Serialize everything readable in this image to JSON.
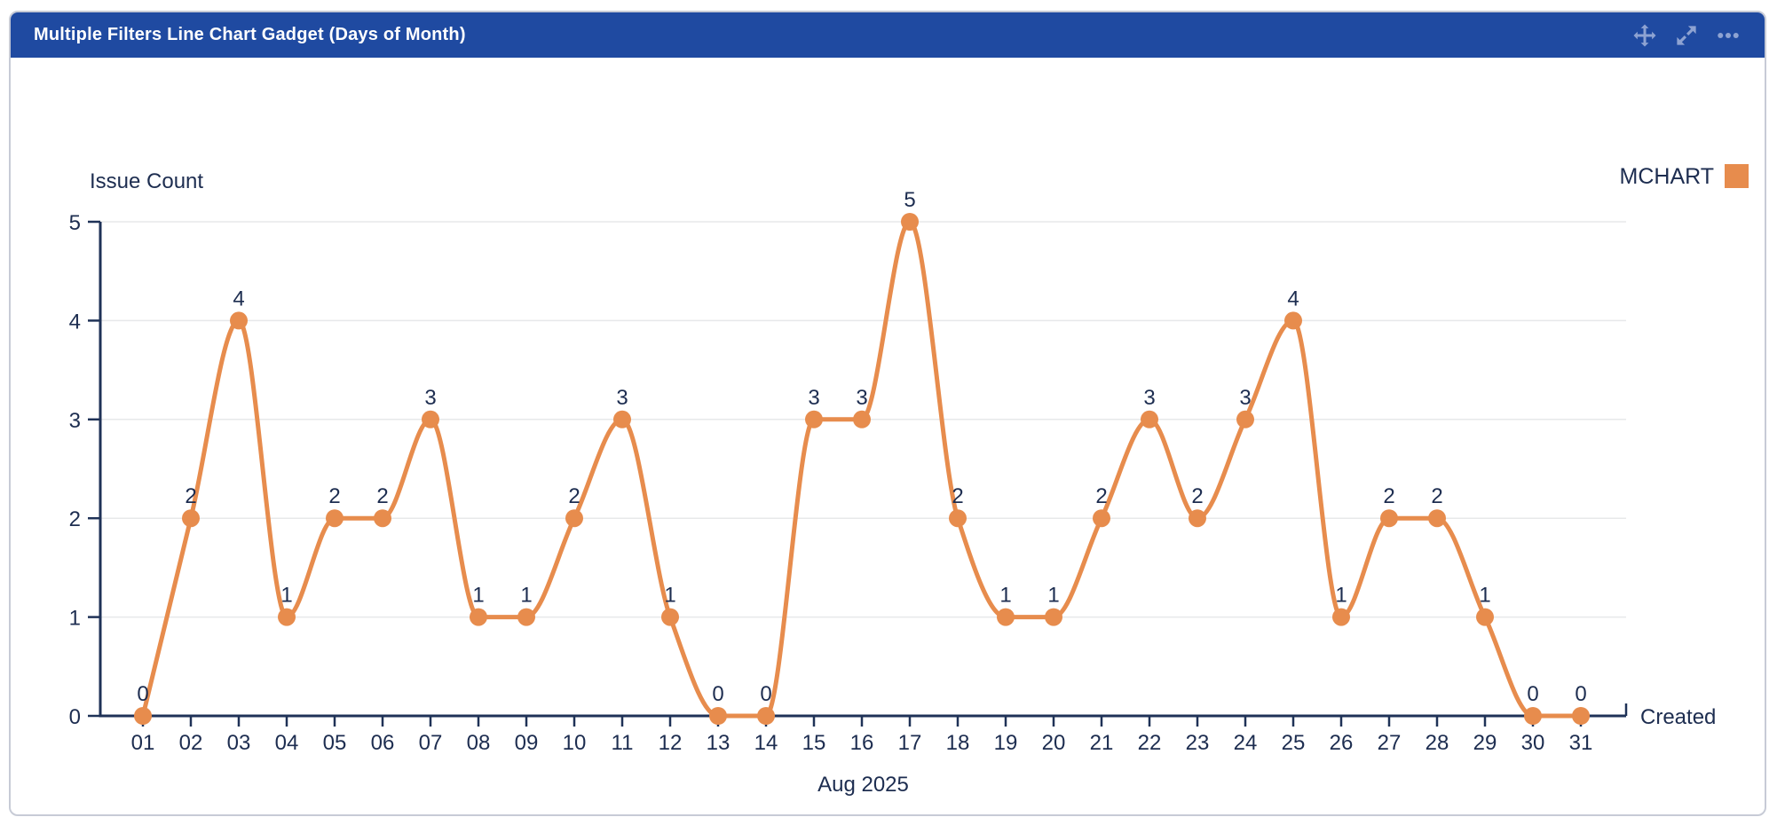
{
  "header": {
    "title": "Multiple Filters Line Chart Gadget (Days of Month)",
    "icons": [
      {
        "name": "move-icon"
      },
      {
        "name": "expand-icon"
      },
      {
        "name": "more-icon"
      }
    ]
  },
  "colors": {
    "header_bg": "#1F4AA1",
    "header_text": "#FFFFFF",
    "header_icon": "#8EA3D2",
    "accent_orange": "#E78C4D",
    "text_navy": "#1D2D50",
    "axis": "#1F3257",
    "gridline": "#E7E8EA",
    "card_border": "#C7CBD6"
  },
  "chart_data": {
    "type": "line",
    "line_shape": "spline",
    "title": "",
    "ylabel": "Issue Count",
    "xlabel": "Aug 2025",
    "x_axis_suffix_label": "Created",
    "categories": [
      "01",
      "02",
      "03",
      "04",
      "05",
      "06",
      "07",
      "08",
      "09",
      "10",
      "11",
      "12",
      "13",
      "14",
      "15",
      "16",
      "17",
      "18",
      "19",
      "20",
      "21",
      "22",
      "23",
      "24",
      "25",
      "26",
      "27",
      "28",
      "29",
      "30",
      "31"
    ],
    "series": [
      {
        "name": "MCHART",
        "color": "#E78C4D",
        "values": [
          0,
          2,
          4,
          1,
          2,
          2,
          3,
          1,
          1,
          2,
          3,
          1,
          0,
          0,
          3,
          3,
          5,
          2,
          1,
          1,
          2,
          3,
          2,
          3,
          4,
          1,
          2,
          2,
          1,
          0,
          0
        ]
      }
    ],
    "ylim": [
      0,
      5
    ],
    "yticks": [
      0,
      1,
      2,
      3,
      4,
      5
    ],
    "grid": true,
    "data_labels": true,
    "legend_position": "top-right"
  }
}
